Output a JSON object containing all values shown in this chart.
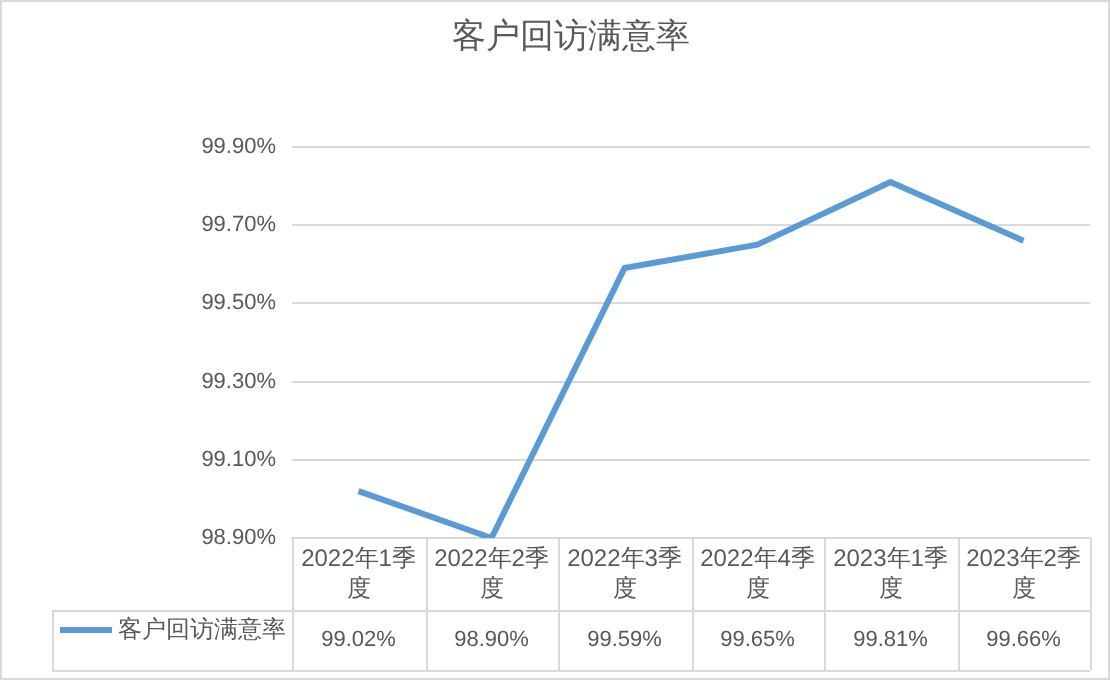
{
  "chart_data": {
    "type": "line",
    "title": "客户回访满意率",
    "categories": [
      "2022年1季度",
      "2022年2季度",
      "2022年3季度",
      "2022年4季度",
      "2023年1季度",
      "2023年2季度"
    ],
    "series": [
      {
        "name": "客户回访满意率",
        "color": "#5b9bd5",
        "values": [
          99.02,
          98.9,
          99.59,
          99.65,
          99.81,
          99.66
        ]
      }
    ],
    "value_labels": [
      "99.02%",
      "98.90%",
      "99.59%",
      "99.65%",
      "99.81%",
      "99.66%"
    ],
    "ylim": [
      98.9,
      99.9
    ],
    "yticks": [
      {
        "value": 98.9,
        "label": "98.90%"
      },
      {
        "value": 99.1,
        "label": "99.10%"
      },
      {
        "value": 99.3,
        "label": "99.30%"
      },
      {
        "value": 99.5,
        "label": "99.50%"
      },
      {
        "value": 99.7,
        "label": "99.70%"
      },
      {
        "value": 99.9,
        "label": "99.90%"
      }
    ],
    "grid": "y",
    "marker": "none",
    "line_style": "solid",
    "legend": "bottom left"
  }
}
